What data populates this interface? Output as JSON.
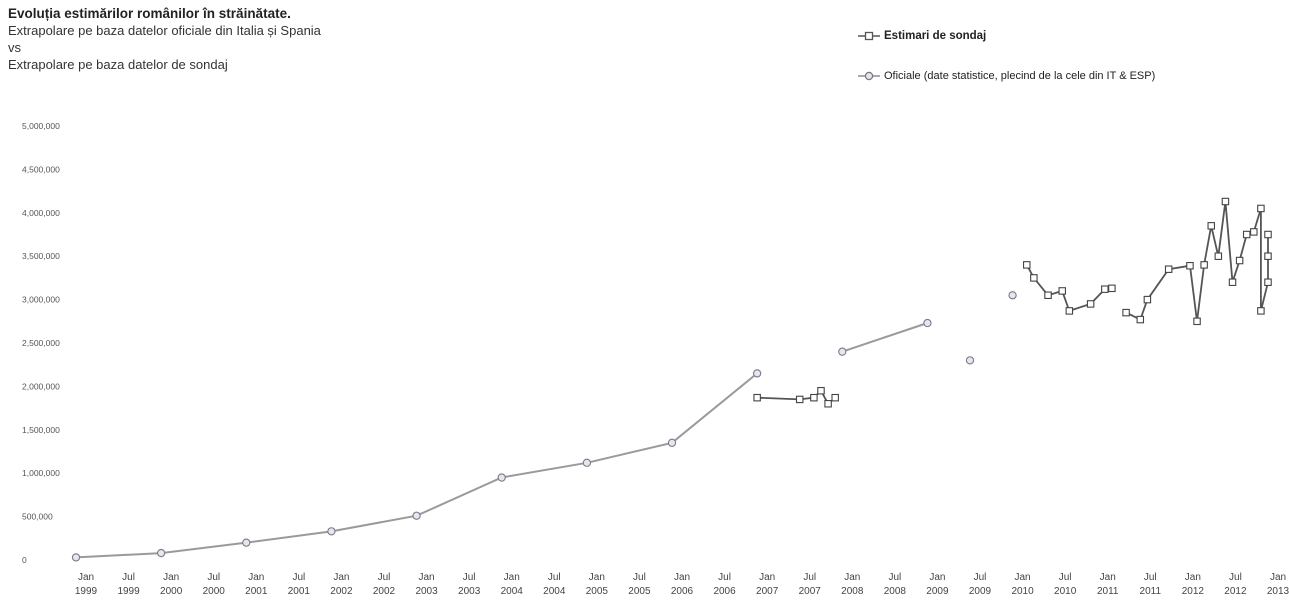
{
  "header": {
    "title": "Evoluția estimărilor românilor în străinătate.",
    "subtitle_lines": [
      "Extrapolare pe baza datelor oficiale din Italia și Spania",
      "vs",
      "Extrapolare pe baza datelor de sondaj"
    ]
  },
  "chart_data": {
    "type": "line",
    "title": "Evoluția estimărilor românilor în străinătate.",
    "ylim": [
      0,
      5000000
    ],
    "y_ticks": [
      {
        "value": 0,
        "label": "0"
      },
      {
        "value": 500000,
        "label": "500,000"
      },
      {
        "value": 1000000,
        "label": "1,000,000"
      },
      {
        "value": 1500000,
        "label": "1,500,000"
      },
      {
        "value": 2000000,
        "label": "2,000,000"
      },
      {
        "value": 2500000,
        "label": "2,500,000"
      },
      {
        "value": 3000000,
        "label": "3,000,000"
      },
      {
        "value": 3500000,
        "label": "3,500,000"
      },
      {
        "value": 4000000,
        "label": "4,000,000"
      },
      {
        "value": 4500000,
        "label": "4,500,000"
      },
      {
        "value": 5000000,
        "label": "5,000,000"
      }
    ],
    "x_ticks": [
      {
        "date": "1999-01",
        "label": [
          "Jan",
          "1999"
        ]
      },
      {
        "date": "1999-07",
        "label": [
          "Jul",
          "1999"
        ]
      },
      {
        "date": "2000-01",
        "label": [
          "Jan",
          "2000"
        ]
      },
      {
        "date": "2000-07",
        "label": [
          "Jul",
          "2000"
        ]
      },
      {
        "date": "2001-01",
        "label": [
          "Jan",
          "2001"
        ]
      },
      {
        "date": "2001-07",
        "label": [
          "Jul",
          "2001"
        ]
      },
      {
        "date": "2002-01",
        "label": [
          "Jan",
          "2002"
        ]
      },
      {
        "date": "2002-07",
        "label": [
          "Jul",
          "2002"
        ]
      },
      {
        "date": "2003-01",
        "label": [
          "Jan",
          "2003"
        ]
      },
      {
        "date": "2003-07",
        "label": [
          "Jul",
          "2003"
        ]
      },
      {
        "date": "2004-01",
        "label": [
          "Jan",
          "2004"
        ]
      },
      {
        "date": "2004-07",
        "label": [
          "Jul",
          "2004"
        ]
      },
      {
        "date": "2005-01",
        "label": [
          "Jan",
          "2005"
        ]
      },
      {
        "date": "2005-07",
        "label": [
          "Jul",
          "2005"
        ]
      },
      {
        "date": "2006-01",
        "label": [
          "Jan",
          "2006"
        ]
      },
      {
        "date": "2006-07",
        "label": [
          "Jul",
          "2006"
        ]
      },
      {
        "date": "2007-01",
        "label": [
          "Jan",
          "2007"
        ]
      },
      {
        "date": "2007-07",
        "label": [
          "Jul",
          "2007"
        ]
      },
      {
        "date": "2008-01",
        "label": [
          "Jan",
          "2008"
        ]
      },
      {
        "date": "2008-07",
        "label": [
          "Jul",
          "2008"
        ]
      },
      {
        "date": "2009-01",
        "label": [
          "Jan",
          "2009"
        ]
      },
      {
        "date": "2009-07",
        "label": [
          "Jul",
          "2009"
        ]
      },
      {
        "date": "2010-01",
        "label": [
          "Jan",
          "2010"
        ]
      },
      {
        "date": "2010-07",
        "label": [
          "Jul",
          "2010"
        ]
      },
      {
        "date": "2011-01",
        "label": [
          "Jan",
          "2011"
        ]
      },
      {
        "date": "2011-07",
        "label": [
          "Jul",
          "2011"
        ]
      },
      {
        "date": "2012-01",
        "label": [
          "Jan",
          "2012"
        ]
      },
      {
        "date": "2012-07",
        "label": [
          "Jul",
          "2012"
        ]
      },
      {
        "date": "2013-01",
        "label": [
          "Jan",
          "2013"
        ]
      }
    ],
    "grid": false,
    "legend_position": "top-right",
    "series": [
      {
        "name": "Oficiale (date statistice, plecind de la cele din IT & ESP)",
        "color": "#9a9a9a",
        "marker": "circle",
        "segments": [
          [
            {
              "x": "1999-01",
              "y": 30000
            },
            {
              "x": "2000-01",
              "y": 80000
            },
            {
              "x": "2001-01",
              "y": 200000
            },
            {
              "x": "2002-01",
              "y": 330000
            },
            {
              "x": "2003-01",
              "y": 510000
            },
            {
              "x": "2004-01",
              "y": 950000
            },
            {
              "x": "2005-01",
              "y": 1120000
            },
            {
              "x": "2006-01",
              "y": 1350000
            },
            {
              "x": "2007-01",
              "y": 2150000
            }
          ],
          [
            {
              "x": "2008-01",
              "y": 2400000
            },
            {
              "x": "2009-01",
              "y": 2730000
            }
          ],
          [
            {
              "x": "2009-07",
              "y": 2300000
            }
          ],
          [
            {
              "x": "2010-01",
              "y": 3050000
            }
          ]
        ]
      },
      {
        "name": "Estimari de sondaj",
        "color": "#555555",
        "marker": "square",
        "segments": [
          [
            {
              "x": "2007-01",
              "y": 1870000
            },
            {
              "x": "2007-07",
              "y": 1850000
            },
            {
              "x": "2007-09",
              "y": 1870000
            },
            {
              "x": "2007-10",
              "y": 1950000
            },
            {
              "x": "2007-11",
              "y": 1800000
            },
            {
              "x": "2007-12",
              "y": 1870000
            }
          ],
          [
            {
              "x": "2010-03",
              "y": 3400000
            },
            {
              "x": "2010-04",
              "y": 3250000
            },
            {
              "x": "2010-06",
              "y": 3050000
            },
            {
              "x": "2010-08",
              "y": 3100000
            },
            {
              "x": "2010-09",
              "y": 2870000
            },
            {
              "x": "2010-12",
              "y": 2950000
            },
            {
              "x": "2011-02",
              "y": 3120000
            },
            {
              "x": "2011-03",
              "y": 3130000
            }
          ],
          [
            {
              "x": "2011-05",
              "y": 2850000
            },
            {
              "x": "2011-07",
              "y": 2770000
            },
            {
              "x": "2011-08",
              "y": 3000000
            },
            {
              "x": "2011-11",
              "y": 3350000
            },
            {
              "x": "2012-02",
              "y": 3390000
            },
            {
              "x": "2012-03",
              "y": 2750000
            },
            {
              "x": "2012-04",
              "y": 3400000
            },
            {
              "x": "2012-05",
              "y": 3850000
            },
            {
              "x": "2012-06",
              "y": 3500000
            },
            {
              "x": "2012-07",
              "y": 4130000
            },
            {
              "x": "2012-08",
              "y": 3200000
            },
            {
              "x": "2012-09",
              "y": 3450000
            },
            {
              "x": "2012-10",
              "y": 3750000
            },
            {
              "x": "2012-11",
              "y": 3780000
            },
            {
              "x": "2012-12",
              "y": 4050000
            },
            {
              "x": "2012-12",
              "y": 2870000
            },
            {
              "x": "2013-01",
              "y": 3200000
            },
            {
              "x": "2013-01",
              "y": 3750000
            },
            {
              "x": "2013-01",
              "y": 3500000
            }
          ]
        ]
      }
    ]
  }
}
